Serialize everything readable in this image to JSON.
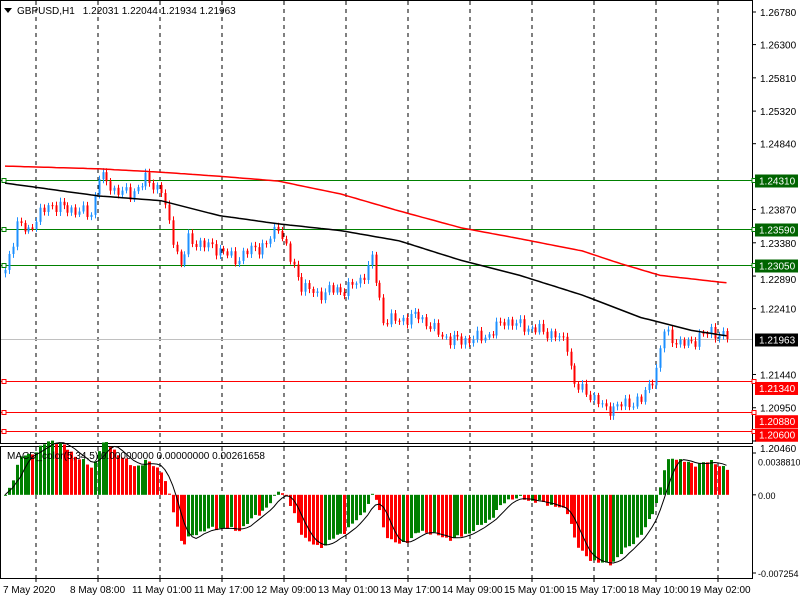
{
  "header": {
    "menu_icon": "triangle-down-icon",
    "symbol": "GBPUSD,H1",
    "ohlc": "1.22031 1.22044 1.21934 1.21963"
  },
  "chart_data": {
    "type": "candlestick",
    "title": "GBPUSD,H1 1.22031 1.22044 1.21934 1.21963",
    "ylim": [
      1.2046,
      1.2678
    ],
    "bars": 186,
    "price_ticks": [
      "1.26780",
      "1.26300",
      "1.25810",
      "1.25320",
      "1.24840",
      "1.23870",
      "1.23380",
      "1.22890",
      "1.22410",
      "1.21440",
      "1.20950",
      "1.20460"
    ],
    "time_labels": [
      "7 May 2020",
      "8 May 08:00",
      "11 May 01:00",
      "11 May 17:00",
      "12 May 09:00",
      "13 May 01:00",
      "13 May 17:00",
      "14 May 09:00",
      "15 May 01:00",
      "15 May 17:00",
      "18 May 10:00",
      "19 May 02:00"
    ],
    "close_keypoints": [
      [
        0,
        1.2298
      ],
      [
        3,
        1.2364
      ],
      [
        6,
        1.2357
      ],
      [
        11,
        1.2394
      ],
      [
        17,
        1.2387
      ],
      [
        22,
        1.238
      ],
      [
        24,
        1.2438
      ],
      [
        28,
        1.2416
      ],
      [
        32,
        1.2409
      ],
      [
        36,
        1.2431
      ],
      [
        40,
        1.2416
      ],
      [
        42,
        1.2364
      ],
      [
        45,
        1.2305
      ],
      [
        47,
        1.2342
      ],
      [
        51,
        1.2335
      ],
      [
        55,
        1.2328
      ],
      [
        59,
        1.2313
      ],
      [
        63,
        1.2328
      ],
      [
        67,
        1.2335
      ],
      [
        70,
        1.2364
      ],
      [
        73,
        1.2313
      ],
      [
        76,
        1.2276
      ],
      [
        80,
        1.2261
      ],
      [
        83,
        1.2268
      ],
      [
        87,
        1.2268
      ],
      [
        91,
        1.2283
      ],
      [
        94,
        1.2313
      ],
      [
        97,
        1.2224
      ],
      [
        101,
        1.2224
      ],
      [
        106,
        1.2231
      ],
      [
        110,
        1.2209
      ],
      [
        114,
        1.2195
      ],
      [
        119,
        1.2195
      ],
      [
        124,
        1.2202
      ],
      [
        128,
        1.2224
      ],
      [
        132,
        1.2216
      ],
      [
        137,
        1.2209
      ],
      [
        141,
        1.2202
      ],
      [
        144,
        1.2187
      ],
      [
        146,
        1.2128
      ],
      [
        150,
        1.2114
      ],
      [
        154,
        1.2092
      ],
      [
        158,
        1.2099
      ],
      [
        163,
        1.2106
      ],
      [
        167,
        1.215
      ],
      [
        169,
        1.2209
      ],
      [
        173,
        1.2187
      ],
      [
        177,
        1.2195
      ],
      [
        181,
        1.2209
      ],
      [
        185,
        1.2196
      ]
    ],
    "ma_black_keypoints": [
      [
        0,
        1.2426
      ],
      [
        24,
        1.2407
      ],
      [
        40,
        1.24
      ],
      [
        55,
        1.2378
      ],
      [
        70,
        1.2366
      ],
      [
        86,
        1.2356
      ],
      [
        101,
        1.2341
      ],
      [
        117,
        1.2312
      ],
      [
        132,
        1.229
      ],
      [
        148,
        1.2261
      ],
      [
        163,
        1.2228
      ],
      [
        176,
        1.2209
      ],
      [
        185,
        1.2201
      ]
    ],
    "ma_red_keypoints": [
      [
        0,
        1.2451
      ],
      [
        24,
        1.2447
      ],
      [
        40,
        1.2442
      ],
      [
        55,
        1.2436
      ],
      [
        70,
        1.2429
      ],
      [
        86,
        1.241
      ],
      [
        101,
        1.2385
      ],
      [
        117,
        1.236
      ],
      [
        132,
        1.2344
      ],
      [
        148,
        1.2326
      ],
      [
        158,
        1.2307
      ],
      [
        168,
        1.229
      ],
      [
        185,
        1.2279
      ]
    ],
    "levels": [
      {
        "label": "1.24310",
        "value": 1.2431,
        "color": "#008000",
        "text_bg": "#006400"
      },
      {
        "label": "1.23590",
        "value": 1.2359,
        "color": "#008000",
        "text_bg": "#006400"
      },
      {
        "label": "1.23050",
        "value": 1.2305,
        "color": "#008000",
        "text_bg": "#006400"
      },
      {
        "label": "1.21340",
        "value": 1.2134,
        "color": "#ff0000",
        "text_bg": "#ff0000"
      },
      {
        "label": "1.20880",
        "value": 1.2088,
        "color": "#ff0000",
        "text_bg": "#ff0000"
      },
      {
        "label": "1.20600",
        "value": 1.206,
        "color": "#ff0000",
        "text_bg": "#ff0000"
      }
    ],
    "current_price": {
      "label": "1.21963",
      "value": 1.21963
    },
    "colors": {
      "bull": "#1e90ff",
      "bear": "#ff0000",
      "macd_up": "#008000",
      "macd_down": "#ff0000"
    },
    "macd": {
      "title": "MACD_color(5,34,5) 0.00000000 0.00000000 0.00261658",
      "ylim": [
        -0.007254,
        0.003881
      ],
      "ticks": [
        "0.0038810",
        "0.00",
        "-0.007254"
      ]
    }
  }
}
